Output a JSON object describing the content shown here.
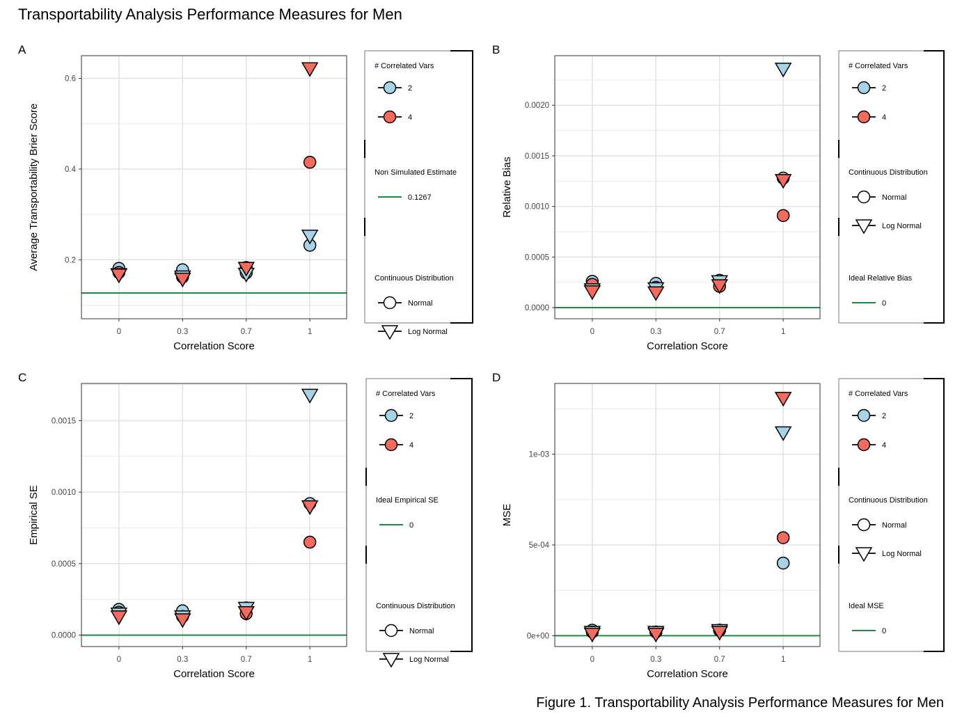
{
  "title": "Transportability Analysis Performance Measures for Men",
  "caption": "Figure 1. Transportability Analysis Performance Measures for Men",
  "colors": {
    "blue": "#a6d3e6",
    "red": "#f26b60",
    "green": "#1a8a3c",
    "grid": "#e3e3e3"
  },
  "chart_data": [
    {
      "panel": "A",
      "type": "scatter",
      "xlabel": "Correlation Score",
      "ylabel": "Average Transportability Brier Score",
      "categories": [
        "0",
        "0.3",
        "0.7",
        "1"
      ],
      "ylim": [
        0.07,
        0.65
      ],
      "yticks": [
        {
          "v": 0.2,
          "label": "0.2"
        },
        {
          "v": 0.4,
          "label": "0.4"
        },
        {
          "v": 0.6,
          "label": "0.6"
        }
      ],
      "hline": 0.1267,
      "grid": true,
      "series": [
        {
          "vars": "2",
          "dist": "Normal",
          "values": [
            0.181,
            0.178,
            0.171,
            0.232
          ]
        },
        {
          "vars": "2",
          "dist": "Log Normal",
          "values": [
            0.168,
            0.163,
            0.169,
            0.253
          ]
        },
        {
          "vars": "4",
          "dist": "Normal",
          "values": [
            0.172,
            0.162,
            0.183,
            0.415
          ]
        },
        {
          "vars": "4",
          "dist": "Log Normal",
          "values": [
            0.167,
            0.158,
            0.182,
            0.622
          ]
        }
      ],
      "legend": {
        "vars_title": "# Correlated Vars",
        "vars": [
          "2",
          "4"
        ],
        "line_title": "Non Simulated Estimate",
        "line_label": "0.1267",
        "dist_title": "Continuous Distribution",
        "dists": [
          "Normal",
          "Log Normal"
        ],
        "order": [
          "vars",
          "line",
          "dist"
        ]
      }
    },
    {
      "panel": "B",
      "type": "scatter",
      "xlabel": "Correlation Score",
      "ylabel": "Relative Bias",
      "categories": [
        "0",
        "0.3",
        "0.7",
        "1"
      ],
      "ylim": [
        -0.00011,
        0.00249
      ],
      "yticks": [
        {
          "v": 0,
          "label": "0.0000"
        },
        {
          "v": 0.0005,
          "label": "0.0005"
        },
        {
          "v": 0.001,
          "label": "0.0010"
        },
        {
          "v": 0.0015,
          "label": "0.0015"
        },
        {
          "v": 0.002,
          "label": "0.0020"
        }
      ],
      "hline": 0,
      "grid": true,
      "series": [
        {
          "vars": "2",
          "dist": "Normal",
          "values": [
            0.00026,
            0.00024,
            0.00027,
            0.00128
          ]
        },
        {
          "vars": "2",
          "dist": "Log Normal",
          "values": [
            0.00018,
            0.00019,
            0.00026,
            0.00236
          ]
        },
        {
          "vars": "4",
          "dist": "Normal",
          "values": [
            0.00023,
            0.0002,
            0.00021,
            0.00091
          ]
        },
        {
          "vars": "4",
          "dist": "Log Normal",
          "values": [
            0.00016,
            0.00015,
            0.00022,
            0.00126
          ]
        }
      ],
      "legend": {
        "vars_title": "# Correlated Vars",
        "vars": [
          "2",
          "4"
        ],
        "dist_title": "Continuous Distribution",
        "dists": [
          "Normal",
          "Log Normal"
        ],
        "line_title": "Ideal Relative Bias",
        "line_label": "0",
        "order": [
          "vars",
          "dist",
          "line"
        ]
      }
    },
    {
      "panel": "C",
      "type": "scatter",
      "xlabel": "Correlation Score",
      "ylabel": "Empirical SE",
      "categories": [
        "0",
        "0.3",
        "0.7",
        "1"
      ],
      "ylim": [
        -8e-05,
        0.00176
      ],
      "yticks": [
        {
          "v": 0,
          "label": "0.0000"
        },
        {
          "v": 0.0005,
          "label": "0.0005"
        },
        {
          "v": 0.001,
          "label": "0.0010"
        },
        {
          "v": 0.0015,
          "label": "0.0015"
        }
      ],
      "hline": 0,
      "grid": true,
      "series": [
        {
          "vars": "2",
          "dist": "Normal",
          "values": [
            0.00018,
            0.00017,
            0.00019,
            0.00092
          ]
        },
        {
          "vars": "2",
          "dist": "Log Normal",
          "values": [
            0.00015,
            0.00013,
            0.00019,
            0.00168
          ]
        },
        {
          "vars": "4",
          "dist": "Normal",
          "values": [
            0.00016,
            0.00013,
            0.00015,
            0.00065
          ]
        },
        {
          "vars": "4",
          "dist": "Log Normal",
          "values": [
            0.00013,
            0.00011,
            0.00016,
            0.0009
          ]
        }
      ],
      "legend": {
        "vars_title": "# Correlated Vars",
        "vars": [
          "2",
          "4"
        ],
        "line_title": "Ideal Empirical SE",
        "line_label": "0",
        "dist_title": "Continuous Distribution",
        "dists": [
          "Normal",
          "Log Normal"
        ],
        "order": [
          "vars",
          "line",
          "dist"
        ]
      }
    },
    {
      "panel": "D",
      "type": "scatter",
      "xlabel": "Correlation Score",
      "ylabel": "MSE",
      "categories": [
        "0",
        "0.3",
        "0.7",
        "1"
      ],
      "ylim": [
        -6e-05,
        0.00139
      ],
      "yticks": [
        {
          "v": 0,
          "label": "0e+00"
        },
        {
          "v": 0.0005,
          "label": "5e-04"
        },
        {
          "v": 0.001,
          "label": "1e-03"
        }
      ],
      "hline": 0,
      "grid": true,
      "series": [
        {
          "vars": "2",
          "dist": "Normal",
          "values": [
            3e-05,
            2e-05,
            3e-05,
            0.0004
          ]
        },
        {
          "vars": "2",
          "dist": "Log Normal",
          "values": [
            2e-05,
            2e-05,
            3e-05,
            0.00112
          ]
        },
        {
          "vars": "4",
          "dist": "Normal",
          "values": [
            2e-05,
            2e-05,
            3e-05,
            0.00054
          ]
        },
        {
          "vars": "4",
          "dist": "Log Normal",
          "values": [
            1e-05,
            1e-05,
            2e-05,
            0.00131
          ]
        }
      ],
      "legend": {
        "vars_title": "# Correlated Vars",
        "vars": [
          "2",
          "4"
        ],
        "dist_title": "Continuous Distribution",
        "dists": [
          "Normal",
          "Log Normal"
        ],
        "line_title": "Ideal MSE",
        "line_label": "0",
        "order": [
          "vars",
          "dist",
          "line"
        ]
      }
    }
  ]
}
